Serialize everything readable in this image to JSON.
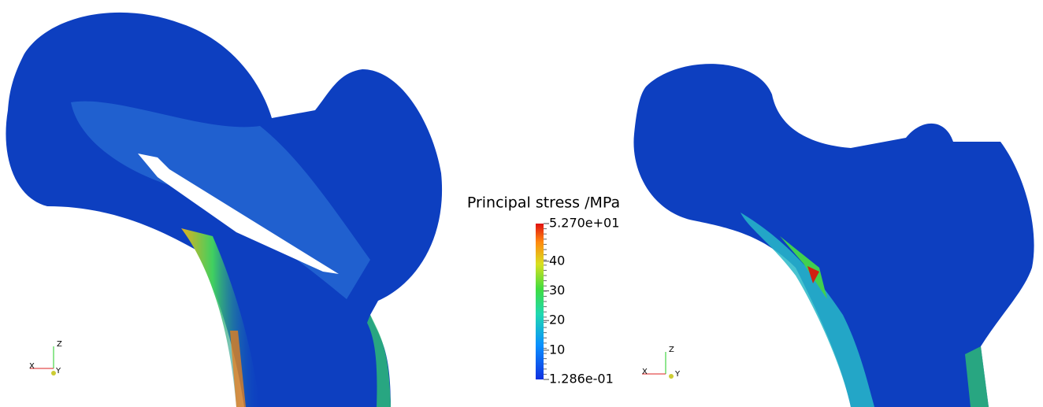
{
  "colorbar": {
    "title": "Principal stress /MPa",
    "range": [
      0.1286,
      52.7
    ],
    "ticks": [
      {
        "value": 52.7,
        "label": "5.270e+01"
      },
      40,
      30,
      20,
      10,
      {
        "value": 0.1286,
        "label": "1.286e-01"
      }
    ]
  },
  "axes_triads": [
    {
      "z": "Z",
      "x": "X",
      "y": "Y"
    },
    {
      "z": "Z",
      "x": "X",
      "y": "Y"
    }
  ]
}
